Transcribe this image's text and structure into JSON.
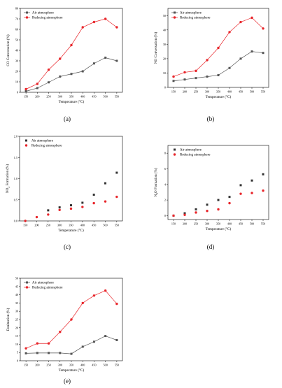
{
  "chart_data": [
    {
      "type": "line",
      "panel_label": "(a)",
      "xlabel": "Temperature (°C)",
      "ylabel": "CO Conversation (%)",
      "x": [
        150,
        200,
        250,
        300,
        350,
        400,
        450,
        500,
        550
      ],
      "xticks": [
        "150",
        "200",
        "250",
        "300",
        "350",
        "400",
        "450",
        "500",
        "550"
      ],
      "ylim": [
        0,
        80
      ],
      "yticks": [
        "0",
        "10",
        "20",
        "30",
        "40",
        "50",
        "60",
        "70",
        "80"
      ],
      "legend_position": "top-left",
      "series": [
        {
          "name": "Air atmosphere",
          "color": "#555555",
          "marker": "square",
          "values": [
            1,
            4,
            9.5,
            15,
            17.5,
            20,
            27.5,
            33,
            30
          ]
        },
        {
          "name": "Reducing atmosphere",
          "color": "#e8262b",
          "marker": "circle",
          "values": [
            3,
            8,
            21.5,
            32,
            45,
            62,
            67,
            70,
            62
          ]
        }
      ]
    },
    {
      "type": "line",
      "panel_label": "(b)",
      "xlabel": "Temperature (°C)",
      "ylabel": "NO Conversation (%)",
      "x": [
        150,
        200,
        250,
        300,
        350,
        400,
        450,
        500,
        550
      ],
      "xticks": [
        "150",
        "200",
        "250",
        "300",
        "350",
        "400",
        "450",
        "500",
        "550"
      ],
      "ylim": [
        0,
        55
      ],
      "yticks": [
        "0",
        "10",
        "20",
        "30",
        "40",
        "50"
      ],
      "legend_position": "top-left",
      "series": [
        {
          "name": "Air atmosphere",
          "color": "#555555",
          "marker": "square",
          "values": [
            4.5,
            5.5,
            6.5,
            7.5,
            8.5,
            13.5,
            20,
            25,
            24
          ]
        },
        {
          "name": "Reducing atmosphere",
          "color": "#e8262b",
          "marker": "circle",
          "values": [
            7.5,
            10.5,
            11.5,
            19,
            27.5,
            38.5,
            45.5,
            48.5,
            41
          ]
        }
      ]
    },
    {
      "type": "scatter",
      "panel_label": "(c)",
      "xlabel": "Temperature (°C)",
      "ylabel": "NO2 Formation (%)",
      "ylabel_main": "NO",
      "ylabel_sub": "2",
      "ylabel_rest": " Formation (%)",
      "x": [
        150,
        200,
        250,
        300,
        350,
        400,
        450,
        500,
        550
      ],
      "xticks": [
        "150",
        "200",
        "250",
        "300",
        "350",
        "400",
        "450",
        "500",
        "550"
      ],
      "ylim": [
        0,
        2.0
      ],
      "yticks": [
        "0.0",
        "0.5",
        "1.0",
        "1.5",
        "2.0"
      ],
      "legend_position": "top-left",
      "series": [
        {
          "name": "Air atmosphere",
          "color": "#333333",
          "marker": "square",
          "values": [
            null,
            null,
            0.25,
            0.32,
            0.37,
            0.43,
            0.62,
            0.89,
            1.14
          ]
        },
        {
          "name": "Reducing atmosphere",
          "color": "#e8262b",
          "marker": "circle",
          "values": [
            0.0,
            0.09,
            0.15,
            0.26,
            0.29,
            0.33,
            0.42,
            0.46,
            0.57
          ]
        }
      ]
    },
    {
      "type": "scatter",
      "panel_label": "(d)",
      "xlabel": "Temperature (°C)",
      "ylabel": "N2O Formation (%)",
      "ylabel_main": "N",
      "ylabel_sub": "2",
      "ylabel_rest": "O Formation (%)",
      "x": [
        150,
        200,
        250,
        300,
        350,
        400,
        450,
        500,
        550
      ],
      "xticks": [
        "150",
        "200",
        "250",
        "300",
        "350",
        "400",
        "450",
        "500",
        "550"
      ],
      "ylim": [
        -0.5,
        9
      ],
      "yticks": [
        "0",
        "2",
        "4",
        "6",
        "8"
      ],
      "legend_position": "top-left",
      "series": [
        {
          "name": "Air atmosphere",
          "color": "#333333",
          "marker": "square",
          "values": [
            0.0,
            0.3,
            0.8,
            1.4,
            2.0,
            2.4,
            3.9,
            4.5,
            5.3
          ]
        },
        {
          "name": "Reducing atmosphere",
          "color": "#e8262b",
          "marker": "circle",
          "values": [
            0.0,
            0.1,
            0.4,
            0.6,
            0.8,
            1.6,
            2.8,
            2.9,
            3.2
          ]
        }
      ]
    },
    {
      "type": "line",
      "panel_label": "(e)",
      "xlabel": "Temperature (°C)",
      "ylabel": "Denitration (%)",
      "x": [
        150,
        200,
        250,
        300,
        350,
        400,
        450,
        500,
        550
      ],
      "xticks": [
        "150",
        "200",
        "250",
        "300",
        "350",
        "400",
        "450",
        "500",
        "550"
      ],
      "ylim": [
        0,
        50
      ],
      "yticks": [
        "0",
        "5",
        "10",
        "15",
        "20",
        "25",
        "30",
        "35",
        "40",
        "45",
        "50"
      ],
      "legend_position": "top-left",
      "series": [
        {
          "name": "Air atmosphere",
          "color": "#555555",
          "marker": "square",
          "values": [
            4.5,
            4.7,
            4.7,
            4.7,
            4.2,
            8.5,
            11.5,
            15,
            12.5
          ]
        },
        {
          "name": "Reducing atmosphere",
          "color": "#e8262b",
          "marker": "circle",
          "values": [
            7.5,
            10.5,
            10.5,
            17.5,
            25,
            35,
            39.5,
            42.5,
            34.5
          ]
        }
      ]
    }
  ]
}
